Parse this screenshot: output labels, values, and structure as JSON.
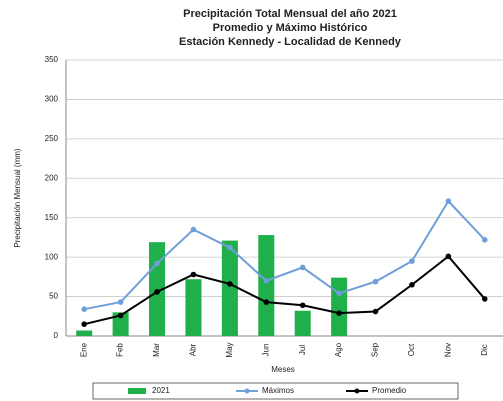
{
  "chart_data": {
    "type": "bar",
    "title": [
      "Precipitación Total Mensual del año 2021",
      "Promedio y Máximo Histórico",
      "Estación Kennedy - Localidad de Kennedy"
    ],
    "y_label": "Precipitación Mensual (mm)",
    "x_label": "Meses",
    "categories": [
      "Ene",
      "Feb",
      "Mar",
      "Abr",
      "May",
      "Jun",
      "Jul",
      "Ago",
      "Sep",
      "Oct",
      "Nov",
      "Dic"
    ],
    "series": [
      {
        "name": "2021",
        "type": "bar",
        "color": "#1fb04b",
        "values": [
          7,
          30,
          119,
          72,
          121,
          128,
          32,
          74,
          null,
          null,
          null,
          null
        ]
      },
      {
        "name": "Máximos",
        "type": "line",
        "color": "#6f9fd8",
        "values": [
          34,
          43,
          92,
          135,
          112,
          70,
          87,
          54,
          69,
          95,
          171,
          122
        ]
      },
      {
        "name": "Promedio",
        "type": "line",
        "color": "#000000",
        "values": [
          15,
          26,
          56,
          78,
          66,
          43,
          39,
          29,
          31,
          65,
          101,
          47
        ]
      }
    ],
    "ylim": [
      0,
      350
    ],
    "yticks": [
      0,
      50,
      100,
      150,
      200,
      250,
      300,
      350
    ],
    "grid": true
  }
}
